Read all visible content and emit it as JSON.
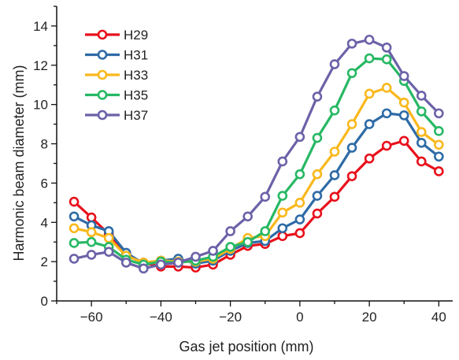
{
  "chart_data": {
    "type": "line",
    "title": "",
    "xlabel": "Gas jet position (mm)",
    "ylabel": "Harmonic beam diameter (mm)",
    "xlim": [
      -70,
      44
    ],
    "ylim": [
      0,
      15
    ],
    "xticks": [
      -60,
      -40,
      -20,
      0,
      20,
      40
    ],
    "yticks": [
      0,
      2,
      4,
      6,
      8,
      10,
      12,
      14
    ],
    "grid": false,
    "legend": "top-left",
    "x": [
      -65,
      -60,
      -55,
      -50,
      -45,
      -40,
      -35,
      -30,
      -25,
      -20,
      -15,
      -10,
      -5,
      0,
      5,
      10,
      15,
      20,
      25,
      30,
      35,
      40
    ],
    "series": [
      {
        "name": "H29",
        "color": "#e8101b",
        "values": [
          5.05,
          4.25,
          3.4,
          2.35,
          1.95,
          1.75,
          1.75,
          1.7,
          1.85,
          2.35,
          2.8,
          2.9,
          3.3,
          3.45,
          4.45,
          5.3,
          6.35,
          7.25,
          7.9,
          8.15,
          7.1,
          6.6
        ]
      },
      {
        "name": "H31",
        "color": "#2e6ba6",
        "values": [
          4.3,
          3.85,
          3.55,
          2.45,
          1.9,
          2.05,
          2.15,
          1.9,
          2.05,
          2.55,
          2.95,
          3.05,
          3.7,
          4.15,
          5.35,
          6.4,
          7.8,
          9.0,
          9.55,
          9.45,
          8.05,
          7.35
        ]
      },
      {
        "name": "H33",
        "color": "#f9b81c",
        "values": [
          3.7,
          3.5,
          3.2,
          2.3,
          1.95,
          2.05,
          2.0,
          2.0,
          2.15,
          2.65,
          3.2,
          3.3,
          4.5,
          5.0,
          6.45,
          7.6,
          9.0,
          10.55,
          10.85,
          10.1,
          8.6,
          7.95
        ]
      },
      {
        "name": "H35",
        "color": "#27b864",
        "values": [
          2.95,
          3.0,
          2.75,
          2.1,
          1.85,
          2.0,
          1.95,
          2.05,
          2.25,
          2.75,
          3.0,
          3.55,
          5.35,
          6.45,
          8.3,
          9.7,
          11.6,
          12.35,
          12.3,
          11.2,
          9.65,
          8.65
        ]
      },
      {
        "name": "H37",
        "color": "#6b62a8",
        "values": [
          2.15,
          2.35,
          2.5,
          1.95,
          1.65,
          1.85,
          1.95,
          2.25,
          2.55,
          3.55,
          4.3,
          5.3,
          7.1,
          8.35,
          10.4,
          12.05,
          13.1,
          13.3,
          12.9,
          11.45,
          10.45,
          9.55
        ]
      }
    ]
  }
}
